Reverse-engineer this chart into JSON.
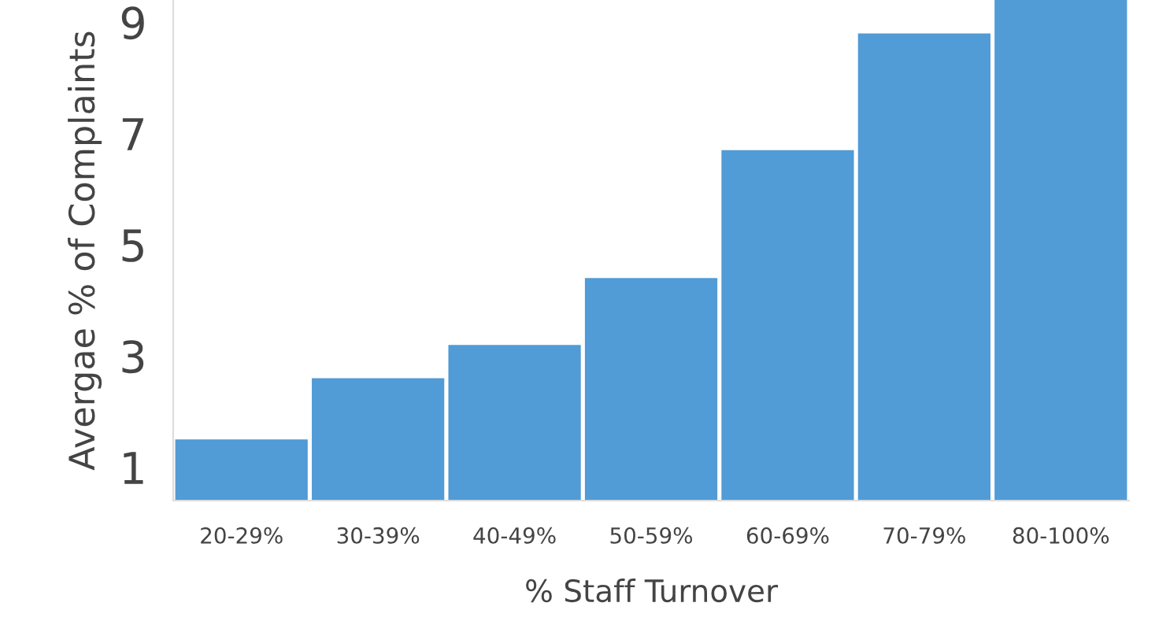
{
  "chart_data": {
    "type": "bar",
    "xlabel": "% Staff Turnover",
    "ylabel": "Avergae % of Complaints",
    "categories": [
      "20-29%",
      "30-39%",
      "40-49%",
      "50-59%",
      "60-69%",
      "70-79%",
      "80-100%"
    ],
    "values": [
      1.5,
      2.6,
      3.2,
      4.4,
      6.7,
      8.8,
      9.4
    ],
    "color": "#519bd6",
    "ylim": [
      0.4,
      9.4
    ],
    "yticks": [
      1,
      3,
      5,
      7,
      9
    ],
    "grid": false
  }
}
